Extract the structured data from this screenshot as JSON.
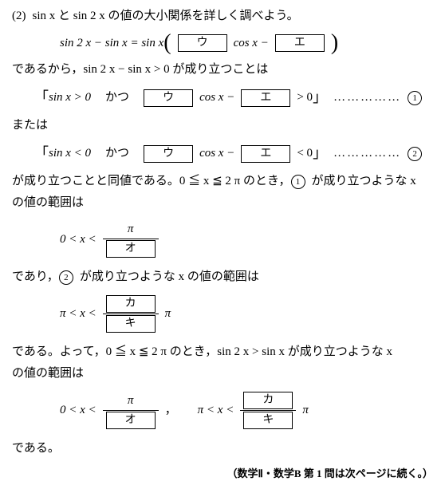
{
  "q": {
    "num": "(2)",
    "intro": "sin x と sin 2 x の値の大小関係を詳しく調べよう。",
    "eq1": {
      "lhs": "sin 2 x − sin x = sin x",
      "cos": "cos x −",
      "blank_u": "ウ",
      "blank_e": "エ"
    },
    "t1": "であるから，sin 2 x − sin x > 0 が成り立つことは",
    "cond1": {
      "a": "sin x > 0",
      "katsu": "かつ",
      "mid": "cos x −",
      "tail": "> 0",
      "num": "1"
    },
    "or": "または",
    "cond2": {
      "a": "sin x < 0",
      "katsu": "かつ",
      "mid": "cos x −",
      "tail": "< 0",
      "num": "2"
    },
    "t2a": "が成り立つことと同値である。0 ≦ x ≦ 2 π のとき，",
    "t2b": "が成り立つような x",
    "t2c": "の値の範囲は",
    "range1": {
      "a": "0 < x <",
      "num": "π",
      "den": "オ"
    },
    "t3": "であり，",
    "t3b": "が成り立つような x の値の範囲は",
    "range2": {
      "a": "π < x <",
      "num": "カ",
      "den": "キ",
      "tail": "π"
    },
    "t4a": "である。よって，0 ≦ x ≦ 2 π のとき，sin 2 x > sin x が成り立つような x",
    "t4b": "の値の範囲は",
    "comma": "，",
    "end": "である。",
    "footer": "（数学Ⅱ・数学B 第 1 問は次ページに続く。）"
  }
}
